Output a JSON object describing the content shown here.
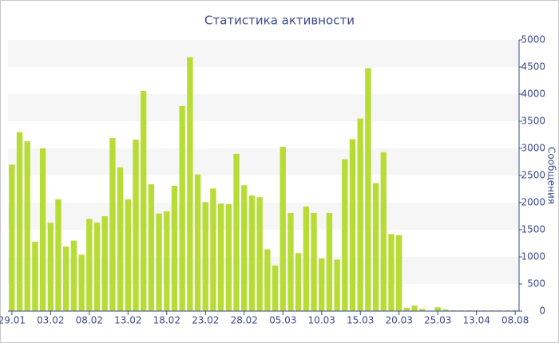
{
  "chart_data": {
    "type": "bar",
    "title": "Статистика активности",
    "y_label": "Сообщения",
    "categories": [
      "29.01",
      null,
      null,
      null,
      null,
      "03.02",
      null,
      null,
      null,
      null,
      "08.02",
      null,
      null,
      null,
      null,
      "13.02",
      null,
      null,
      null,
      null,
      "18.02",
      null,
      null,
      null,
      null,
      "23.02",
      null,
      null,
      null,
      null,
      "28.02",
      null,
      null,
      null,
      null,
      "05.03",
      null,
      null,
      null,
      null,
      "10.03",
      null,
      null,
      null,
      null,
      "15.03",
      null,
      null,
      null,
      null,
      "20.03",
      null,
      null,
      null,
      null,
      "25.03",
      null,
      null,
      null,
      null,
      "13.04",
      null,
      null,
      null,
      null,
      "08.08"
    ],
    "values": [
      2700,
      3300,
      3130,
      1280,
      3000,
      1630,
      2060,
      1190,
      1300,
      1040,
      1700,
      1630,
      1750,
      3190,
      2650,
      2060,
      3160,
      4060,
      2340,
      1800,
      1840,
      2310,
      3780,
      4680,
      2520,
      2010,
      2260,
      1980,
      1970,
      2900,
      2320,
      2130,
      2100,
      1140,
      840,
      3030,
      1810,
      1070,
      1930,
      1810,
      970,
      1810,
      950,
      2800,
      3170,
      3550,
      4480,
      2360,
      2930,
      1420,
      1400,
      60,
      100,
      40,
      10,
      70,
      30,
      15,
      15,
      15,
      15,
      15,
      15,
      15,
      15,
      15
    ],
    "color": "#b7dc35",
    "ylim": [
      0,
      5000
    ],
    "yticks": [
      0,
      500,
      1000,
      1500,
      2000,
      2500,
      3000,
      3500,
      4000,
      4500,
      5000
    ],
    "grid": true
  }
}
